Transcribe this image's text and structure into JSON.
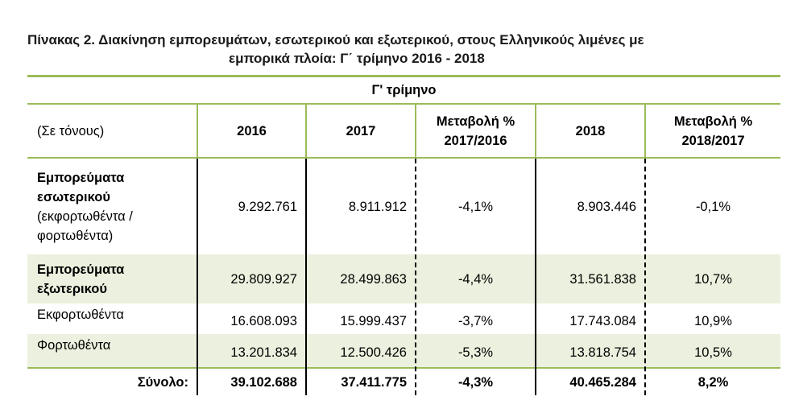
{
  "title": {
    "line1": "Πίνακας 2. Διακίνηση εμπορευμάτων, εσωτερικού και εξωτερικού, στους Ελληνικούς λιμένες με",
    "line2": "εμπορικά πλοία: Γ΄ τρίμηνο 2016 - 2018"
  },
  "table": {
    "group_header": "Γ' τρίμηνο",
    "unit_label": "(Σε τόνους)",
    "columns": [
      "2016",
      "2017",
      "Μεταβολή % 2017/2016",
      "2018",
      "Μεταβολή % 2018/2017"
    ],
    "rows": [
      {
        "label_bold": "Εμπορεύματα εσωτερικού",
        "label_normal": "(εκφορτωθέντα / φορτωθέντα)",
        "values": [
          "9.292.761",
          "8.911.912",
          "-4,1%",
          "8.903.446",
          "-0,1%"
        ]
      },
      {
        "label_bold": "Εμπορεύματα εξωτερικού",
        "label_normal": "",
        "values": [
          "29.809.927",
          "28.499.863",
          "-4,4%",
          "31.561.838",
          "10,7%"
        ]
      },
      {
        "label_bold": "",
        "label_normal": "Εκφορτωθέντα",
        "values": [
          "16.608.093",
          "15.999.437",
          "-3,7%",
          "17.743.084",
          "10,9%"
        ]
      },
      {
        "label_bold": "",
        "label_normal": "Φορτωθέντα",
        "values": [
          "13.201.834",
          "12.500.426",
          "-5,3%",
          "13.818.754",
          "10,5%"
        ]
      }
    ],
    "total": {
      "label": "Σύνολο:",
      "values": [
        "39.102.688",
        "37.411.775",
        "-4,3%",
        "40.465.284",
        "8,2%"
      ]
    }
  },
  "colors": {
    "accent_green": "#9bbb59",
    "band_green": "#ebf1de"
  }
}
